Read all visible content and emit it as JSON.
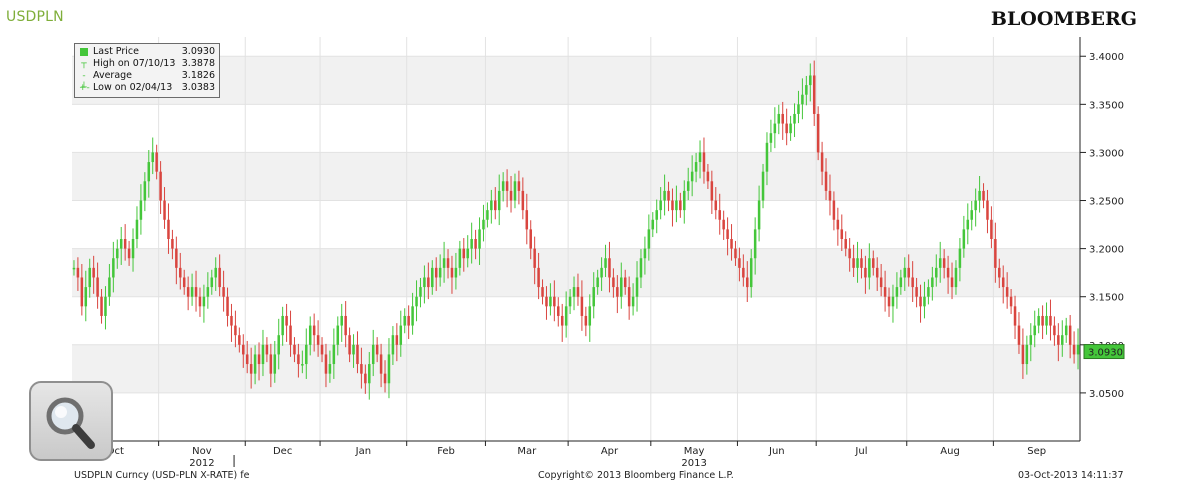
{
  "header": {
    "ticker": "USDPLN",
    "brand": "BLOOMBERG"
  },
  "legend": {
    "items": [
      {
        "label": "Last Price",
        "value": "3.0930"
      },
      {
        "label": "High on 07/10/13",
        "value": "3.3878"
      },
      {
        "label": "Average",
        "value": "3.1826"
      },
      {
        "label": "Low on 02/04/13",
        "value": "3.0383"
      }
    ]
  },
  "footer": {
    "left": "USDPLN Curncy (USD-PLN X-RATE) fe",
    "center": "Copyright© 2013 Bloomberg Finance L.P.",
    "right": "03-Oct-2013 14:11:37"
  },
  "colors": {
    "up": "#44c63a",
    "down": "#d9453f",
    "accent": "#7fae3a",
    "last_price_tag": "#44c63a"
  },
  "icons": {
    "zoom": "magnifier-icon"
  },
  "chart_data": {
    "type": "candlestick",
    "y_axis_position": "right",
    "ylim": [
      3.0,
      3.42
    ],
    "y_ticks": [
      3.05,
      3.1,
      3.15,
      3.2,
      3.25,
      3.3,
      3.35,
      3.4
    ],
    "y_tick_labels": [
      "3.0500",
      "3.1000",
      "3.1500",
      "3.2000",
      "3.2500",
      "3.3000",
      "3.3500",
      "3.4000"
    ],
    "last_price": 3.093,
    "last_price_label": "3.0930",
    "x_month_labels": [
      "Oct",
      "Nov",
      "Dec",
      "Jan",
      "Feb",
      "Mar",
      "Apr",
      "May",
      "Jun",
      "Jul",
      "Aug",
      "Sep"
    ],
    "x_year_labels": [
      {
        "label": "2012",
        "month": "Nov"
      },
      {
        "label": "2013",
        "month": "May"
      }
    ],
    "highlight_bands": "alternating light-grey y bands",
    "grid": true,
    "legend_position": "top-left",
    "daily_close_by_month": [
      {
        "month": "Oct",
        "closes": [
          3.18,
          3.17,
          3.14,
          3.16,
          3.18,
          3.17,
          3.15,
          3.13,
          3.15,
          3.17,
          3.19,
          3.2,
          3.21,
          3.2,
          3.19,
          3.21,
          3.23,
          3.25,
          3.27,
          3.29,
          3.3,
          3.28
        ]
      },
      {
        "month": "Nov",
        "closes": [
          3.25,
          3.23,
          3.21,
          3.2,
          3.18,
          3.17,
          3.16,
          3.15,
          3.16,
          3.15,
          3.14,
          3.15,
          3.16,
          3.17,
          3.18,
          3.16,
          3.15,
          3.13,
          3.12,
          3.11,
          3.1,
          3.09
        ]
      },
      {
        "month": "Dec",
        "closes": [
          3.08,
          3.07,
          3.09,
          3.08,
          3.1,
          3.09,
          3.07,
          3.09,
          3.11,
          3.13,
          3.12,
          3.1,
          3.09,
          3.08,
          3.08,
          3.1,
          3.12,
          3.11,
          3.1
        ]
      },
      {
        "month": "Jan",
        "closes": [
          3.09,
          3.07,
          3.08,
          3.1,
          3.12,
          3.13,
          3.11,
          3.09,
          3.1,
          3.08,
          3.07,
          3.06,
          3.08,
          3.1,
          3.09,
          3.07,
          3.06,
          3.09,
          3.11,
          3.1,
          3.12,
          3.13
        ]
      },
      {
        "month": "Feb",
        "closes": [
          3.12,
          3.14,
          3.15,
          3.16,
          3.17,
          3.16,
          3.18,
          3.17,
          3.18,
          3.19,
          3.18,
          3.17,
          3.18,
          3.2,
          3.19,
          3.2,
          3.21,
          3.2,
          3.22,
          3.23
        ]
      },
      {
        "month": "Mar",
        "closes": [
          3.24,
          3.25,
          3.24,
          3.26,
          3.27,
          3.26,
          3.25,
          3.27,
          3.26,
          3.24,
          3.22,
          3.2,
          3.18,
          3.16,
          3.15,
          3.14,
          3.15,
          3.14,
          3.13,
          3.12,
          3.14
        ]
      },
      {
        "month": "Apr",
        "closes": [
          3.15,
          3.16,
          3.15,
          3.13,
          3.12,
          3.14,
          3.16,
          3.17,
          3.18,
          3.19,
          3.17,
          3.16,
          3.15,
          3.17,
          3.16,
          3.14,
          3.15,
          3.17,
          3.19,
          3.2,
          3.22
        ]
      },
      {
        "month": "May",
        "closes": [
          3.23,
          3.24,
          3.25,
          3.26,
          3.25,
          3.24,
          3.25,
          3.24,
          3.26,
          3.27,
          3.28,
          3.29,
          3.3,
          3.28,
          3.27,
          3.25,
          3.24,
          3.23,
          3.22,
          3.21,
          3.2,
          3.19
        ]
      },
      {
        "month": "Jun",
        "closes": [
          3.18,
          3.17,
          3.16,
          3.19,
          3.22,
          3.25,
          3.28,
          3.31,
          3.32,
          3.33,
          3.34,
          3.33,
          3.32,
          3.33,
          3.34,
          3.35,
          3.36,
          3.37,
          3.38,
          3.34
        ]
      },
      {
        "month": "Jul",
        "closes": [
          3.3,
          3.28,
          3.26,
          3.25,
          3.23,
          3.22,
          3.21,
          3.2,
          3.19,
          3.18,
          3.19,
          3.18,
          3.17,
          3.19,
          3.18,
          3.17,
          3.16,
          3.15,
          3.14,
          3.15,
          3.16,
          3.17,
          3.18
        ]
      },
      {
        "month": "Aug",
        "closes": [
          3.17,
          3.16,
          3.15,
          3.14,
          3.15,
          3.16,
          3.17,
          3.18,
          3.19,
          3.18,
          3.17,
          3.16,
          3.18,
          3.2,
          3.22,
          3.23,
          3.24,
          3.25,
          3.26,
          3.25,
          3.23,
          3.21
        ]
      },
      {
        "month": "Sep",
        "closes": [
          3.18,
          3.17,
          3.16,
          3.15,
          3.14,
          3.12,
          3.1,
          3.08,
          3.1,
          3.11,
          3.12,
          3.13,
          3.12,
          3.13,
          3.12,
          3.11,
          3.1,
          3.11,
          3.12,
          3.1,
          3.09,
          3.1
        ]
      }
    ]
  }
}
